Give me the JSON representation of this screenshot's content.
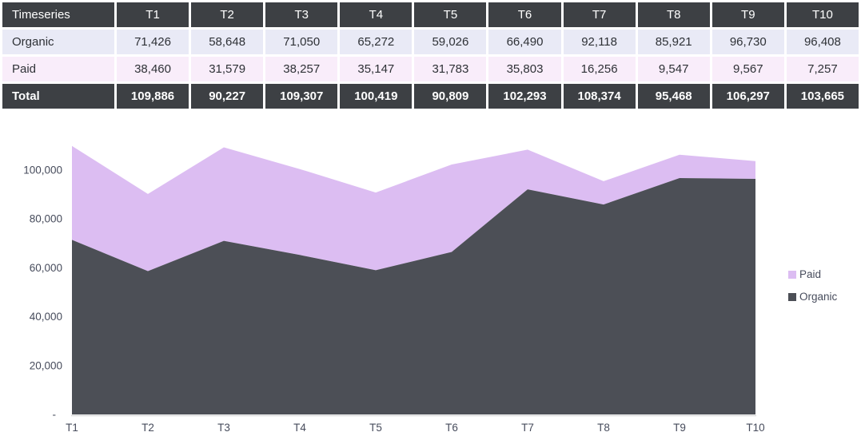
{
  "table": {
    "header_label": "Timeseries",
    "columns": [
      "T1",
      "T2",
      "T3",
      "T4",
      "T5",
      "T6",
      "T7",
      "T8",
      "T9",
      "T10"
    ],
    "rows": [
      {
        "label": "Organic",
        "values": [
          "71,426",
          "58,648",
          "71,050",
          "65,272",
          "59,026",
          "66,490",
          "92,118",
          "85,921",
          "96,730",
          "96,408"
        ]
      },
      {
        "label": "Paid",
        "values": [
          "38,460",
          "31,579",
          "38,257",
          "35,147",
          "31,783",
          "35,803",
          "16,256",
          "9,547",
          "9,567",
          "7,257"
        ]
      }
    ],
    "total": {
      "label": "Total",
      "values": [
        "109,886",
        "90,227",
        "109,307",
        "100,419",
        "90,809",
        "102,293",
        "108,374",
        "95,468",
        "106,297",
        "103,665"
      ]
    }
  },
  "chart_data": {
    "type": "area",
    "stacked": true,
    "title": "",
    "xlabel": "",
    "ylabel": "",
    "categories": [
      "T1",
      "T2",
      "T3",
      "T4",
      "T5",
      "T6",
      "T7",
      "T8",
      "T9",
      "T10"
    ],
    "series": [
      {
        "name": "Organic",
        "color": "#4c4f56",
        "values": [
          71426,
          58648,
          71050,
          65272,
          59026,
          66490,
          92118,
          85921,
          96730,
          96408
        ]
      },
      {
        "name": "Paid",
        "color": "#dcbdf2",
        "values": [
          38460,
          31579,
          38257,
          35147,
          31783,
          35803,
          16256,
          9547,
          9567,
          7257
        ]
      }
    ],
    "totals": [
      109886,
      90227,
      109307,
      100419,
      90809,
      102293,
      108374,
      95468,
      106297,
      103665
    ],
    "ylim": [
      0,
      110000
    ],
    "yticks": [
      {
        "value": 0,
        "label": "-"
      },
      {
        "value": 20000,
        "label": "20,000"
      },
      {
        "value": 40000,
        "label": "40,000"
      },
      {
        "value": 60000,
        "label": "60,000"
      },
      {
        "value": 80000,
        "label": "80,000"
      },
      {
        "value": 100000,
        "label": "100,000"
      }
    ],
    "grid": false,
    "legend_position": "right",
    "legend": [
      {
        "label": "Paid",
        "color": "#dcbdf2"
      },
      {
        "label": "Organic",
        "color": "#4c4f56"
      }
    ]
  },
  "colors": {
    "table_dark": "#3d4044",
    "table_text": "#2e3136",
    "row_organic": "#e9eaf6",
    "row_paid": "#f9edfa",
    "organic_area": "#4c4f56",
    "paid_area": "#dcbdf2",
    "axis_text": "#474c5c",
    "axis_line": "#d9d9d9"
  }
}
